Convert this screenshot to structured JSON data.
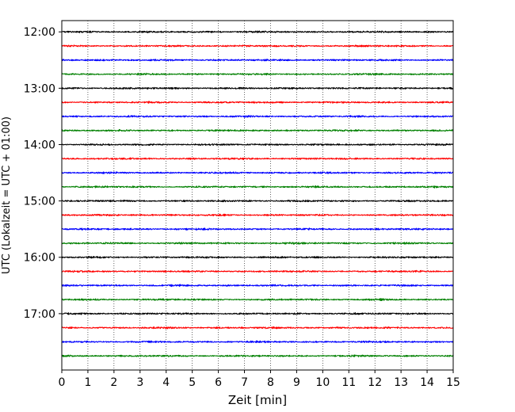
{
  "chart_data": {
    "type": "line",
    "title": "",
    "xlabel": "Zeit  [min]",
    "ylabel": "UTC (Lokalzeit = UTC + 01:00)",
    "xlim": [
      0,
      15
    ],
    "x_ticks": [
      0,
      1,
      2,
      3,
      4,
      5,
      6,
      7,
      8,
      9,
      10,
      11,
      12,
      13,
      14,
      15
    ],
    "x_tick_labels": [
      "0",
      "1",
      "2",
      "3",
      "4",
      "5",
      "6",
      "7",
      "8",
      "9",
      "10",
      "11",
      "12",
      "13",
      "14",
      "15"
    ],
    "ylim": [
      "11:48",
      "18:00"
    ],
    "y_ticks": [
      "12:00",
      "13:00",
      "14:00",
      "15:00",
      "16:00",
      "17:00"
    ],
    "vertical_grid": true,
    "grid_style": "dotted",
    "trace_interval_minutes": 15,
    "traces": [
      {
        "start": "12:00",
        "color": "#000000"
      },
      {
        "start": "12:15",
        "color": "#ff0000"
      },
      {
        "start": "12:30",
        "color": "#0000ff"
      },
      {
        "start": "12:45",
        "color": "#008000"
      },
      {
        "start": "13:00",
        "color": "#000000"
      },
      {
        "start": "13:15",
        "color": "#ff0000"
      },
      {
        "start": "13:30",
        "color": "#0000ff"
      },
      {
        "start": "13:45",
        "color": "#008000"
      },
      {
        "start": "14:00",
        "color": "#000000"
      },
      {
        "start": "14:15",
        "color": "#ff0000"
      },
      {
        "start": "14:30",
        "color": "#0000ff"
      },
      {
        "start": "14:45",
        "color": "#008000"
      },
      {
        "start": "15:00",
        "color": "#000000"
      },
      {
        "start": "15:15",
        "color": "#ff0000"
      },
      {
        "start": "15:30",
        "color": "#0000ff"
      },
      {
        "start": "15:45",
        "color": "#008000"
      },
      {
        "start": "16:00",
        "color": "#000000"
      },
      {
        "start": "16:15",
        "color": "#ff0000"
      },
      {
        "start": "16:30",
        "color": "#0000ff"
      },
      {
        "start": "16:45",
        "color": "#008000"
      },
      {
        "start": "17:00",
        "color": "#000000"
      },
      {
        "start": "17:15",
        "color": "#ff0000"
      },
      {
        "start": "17:30",
        "color": "#0000ff"
      },
      {
        "start": "17:45",
        "color": "#008000"
      }
    ]
  }
}
